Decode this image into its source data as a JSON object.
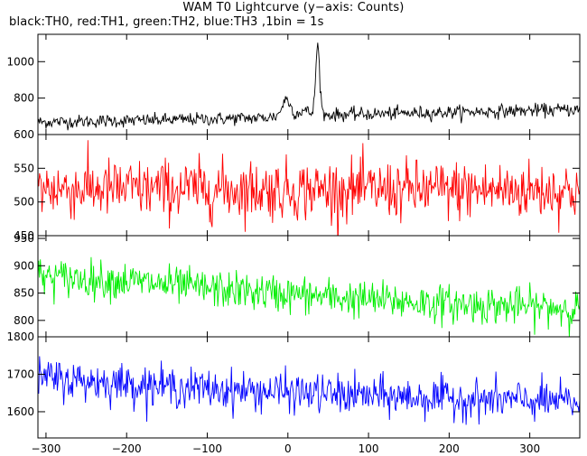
{
  "chart_data": {
    "type": "line",
    "title": "WAM T0 Lightcurve (y−axis: Counts)",
    "subtitle": "black:TH0, red:TH1, green:TH2, blue:TH3 ,1bin = 1s",
    "xlabel": "",
    "ylabel": "",
    "xlim": [
      -310,
      362
    ],
    "x_ticks": [
      -300,
      -200,
      -100,
      0,
      100,
      200,
      300
    ],
    "x_tick_labels": [
      "−300",
      "−200",
      "−100",
      "0",
      "100",
      "200",
      "300"
    ],
    "bin_seconds": 1,
    "panels": [
      {
        "name": "TH0",
        "color": "#000000",
        "ylim": [
          600,
          1150
        ],
        "y_ticks": [
          600,
          800,
          1000
        ],
        "y_tick_labels": [
          "600",
          "800",
          "1000"
        ],
        "baseline": [
          [
            -310,
            668
          ],
          [
            -150,
            680
          ],
          [
            -30,
            692
          ],
          [
            0,
            705
          ],
          [
            100,
            712
          ],
          [
            200,
            722
          ],
          [
            362,
            738
          ]
        ],
        "noise": 18,
        "features": [
          {
            "center": -2,
            "width": 5,
            "amplitude": 90
          },
          {
            "center": 20,
            "width": 6,
            "amplitude": 25
          },
          {
            "center": 37,
            "width": 2.5,
            "amplitude": 380
          }
        ]
      },
      {
        "name": "TH1",
        "color": "#ff0000",
        "ylim": [
          450,
          600
        ],
        "y_ticks": [
          450,
          500,
          550
        ],
        "y_tick_labels": [
          "450",
          "500",
          "550"
        ],
        "baseline": [
          [
            -310,
            520
          ],
          [
            0,
            518
          ],
          [
            362,
            517
          ]
        ],
        "noise": 22,
        "features": []
      },
      {
        "name": "TH2",
        "color": "#00ee00",
        "ylim": [
          770,
          955
        ],
        "y_ticks": [
          800,
          850,
          900,
          950
        ],
        "y_tick_labels": [
          "800",
          "850",
          "900",
          "950"
        ],
        "baseline": [
          [
            -310,
            880
          ],
          [
            -200,
            872
          ],
          [
            -100,
            858
          ],
          [
            0,
            848
          ],
          [
            100,
            838
          ],
          [
            200,
            830
          ],
          [
            362,
            822
          ]
        ],
        "noise": 17,
        "features": []
      },
      {
        "name": "TH3",
        "color": "#0000ff",
        "ylim": [
          1530,
          1800
        ],
        "y_ticks": [
          1600,
          1700,
          1800
        ],
        "y_tick_labels": [
          "1600",
          "1700",
          "1800"
        ],
        "baseline": [
          [
            -310,
            1690
          ],
          [
            -200,
            1675
          ],
          [
            -100,
            1660
          ],
          [
            0,
            1652
          ],
          [
            100,
            1642
          ],
          [
            200,
            1635
          ],
          [
            362,
            1625
          ]
        ],
        "noise": 26,
        "features": []
      }
    ]
  }
}
